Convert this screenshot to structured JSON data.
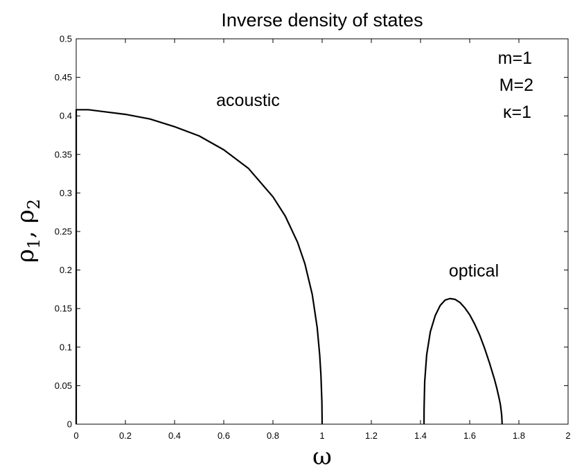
{
  "chart_data": {
    "type": "line",
    "title": "Inverse density of states",
    "xlabel": "ω",
    "ylabel": {
      "base1": "ρ",
      "sub1": "1",
      "sep": ", ",
      "base2": "ρ",
      "sub2": "2"
    },
    "xlim": [
      0,
      2
    ],
    "ylim": [
      0,
      0.5
    ],
    "xticks": [
      "0",
      "0.2",
      "0.4",
      "0.6",
      "0.8",
      "1",
      "1.2",
      "1.4",
      "1.6",
      "1.8",
      "2"
    ],
    "yticks": [
      "0",
      "0.05",
      "0.1",
      "0.15",
      "0.2",
      "0.25",
      "0.3",
      "0.35",
      "0.4",
      "0.45",
      "0.5"
    ],
    "grid": false,
    "params": {
      "m": "m=1",
      "M": "M=2",
      "kappa": "κ=1"
    },
    "annotations": {
      "acoustic": "acoustic",
      "optical": "optical"
    },
    "series": [
      {
        "label": "acoustic",
        "x": [
          0,
          0.0001,
          0.05,
          0.1,
          0.2,
          0.3,
          0.4,
          0.5,
          0.6,
          0.7,
          0.8,
          0.85,
          0.9,
          0.93,
          0.96,
          0.98,
          0.99,
          0.995,
          0.999,
          1.0
        ],
        "y": [
          0,
          0.408,
          0.408,
          0.406,
          0.402,
          0.396,
          0.386,
          0.374,
          0.356,
          0.332,
          0.295,
          0.27,
          0.236,
          0.208,
          0.168,
          0.125,
          0.09,
          0.064,
          0.029,
          0
        ]
      },
      {
        "label": "optical",
        "x": [
          1.4142,
          1.4145,
          1.417,
          1.425,
          1.44,
          1.46,
          1.48,
          1.5,
          1.52,
          1.54,
          1.56,
          1.58,
          1.6,
          1.62,
          1.64,
          1.66,
          1.68,
          1.7,
          1.71,
          1.72,
          1.725,
          1.73,
          1.732
        ],
        "y": [
          0,
          0.02,
          0.055,
          0.09,
          0.12,
          0.141,
          0.154,
          0.161,
          0.163,
          0.162,
          0.158,
          0.151,
          0.142,
          0.13,
          0.116,
          0.099,
          0.08,
          0.059,
          0.047,
          0.033,
          0.025,
          0.012,
          0
        ]
      }
    ],
    "line_color": "#000000"
  }
}
